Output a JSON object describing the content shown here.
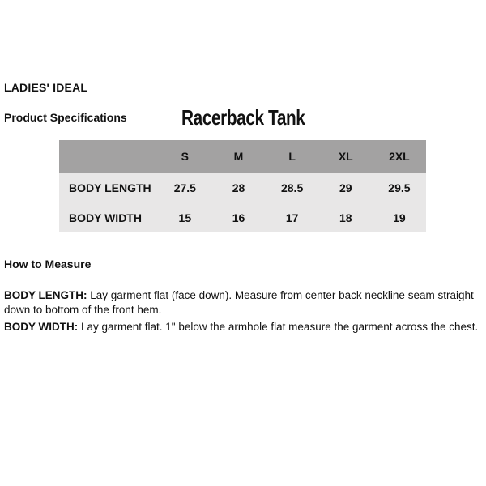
{
  "page": {
    "brand": "LADIES' IDEAL",
    "section_label": "Product Specifications",
    "product_name": "Racerback Tank"
  },
  "spec_table": {
    "corner_label": "",
    "columns": [
      "S",
      "M",
      "L",
      "XL",
      "2XL"
    ],
    "rows": [
      {
        "label": "BODY LENGTH",
        "values": [
          "27.5",
          "28",
          "28.5",
          "29",
          "29.5"
        ]
      },
      {
        "label": "BODY WIDTH",
        "values": [
          "15",
          "16",
          "17",
          "18",
          "19"
        ]
      }
    ],
    "colors": {
      "header_bg": "#a3a2a2",
      "body_bg": "#e8e7e7"
    }
  },
  "how_to_measure": {
    "heading": "How to Measure",
    "items": [
      {
        "term": "BODY LENGTH:",
        "description": " Lay garment flat (face down). Measure from center back neckline seam straight down to bottom of the front hem."
      },
      {
        "term": "BODY WIDTH:",
        "description": " Lay garment flat. 1\" below the armhole flat measure the garment across the chest."
      }
    ]
  }
}
